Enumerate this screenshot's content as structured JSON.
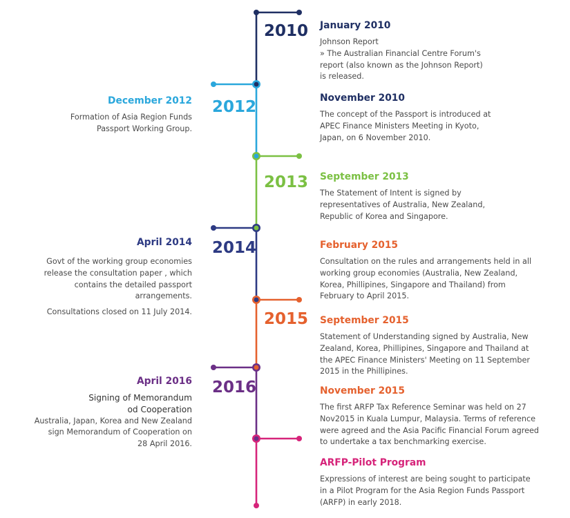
{
  "colors": {
    "y2010": "#1f2f63",
    "y2012": "#2aa7dc",
    "y2013": "#7bc043",
    "y2014": "#2d3a83",
    "y2015": "#e5612e",
    "y2016": "#6b2f86",
    "yPilot": "#d6247a",
    "text": "#4a4a4a"
  },
  "years": [
    "2010",
    "2012",
    "2013",
    "2014",
    "2015",
    "2016"
  ],
  "right_events": [
    {
      "title": "January 2010",
      "subtitle": "Johnson Report",
      "bullet": "» The Australian Financial Centre Forum's\n   report (also known as the Johnson Report)\n   is released."
    },
    {
      "title": "November 2010",
      "body": "The concept of the Passport is introduced at\nAPEC Finance Ministers Meeting in Kyoto,\nJapan, on 6 November 2010."
    },
    {
      "title": "September 2013",
      "body": "The Statement of Intent is signed by\nrepresentatives of Australia, New Zealand,\nRepublic of Korea and Singapore."
    },
    {
      "title": "February 2015",
      "body": "Consultation on the rules and arrangements held in all\nworking group economies (Australia, New Zealand,\nKorea, Phillipines, Singapore and Thailand) from\nFebruary to April 2015."
    },
    {
      "title": "September 2015",
      "body": "Statement of Understanding signed by Australia, New\nZealand, Korea, Phillipines, Singapore and Thailand at\nthe APEC Finance Ministers' Meeting on 11 September\n2015 in the Phillipines."
    },
    {
      "title": "November 2015",
      "body": "The first ARFP Tax Reference Seminar was held on 27\nNov2015 in Kuala Lumpur, Malaysia. Terms of reference\nwere agreed and the Asia Pacific Financial Forum agreed\nto undertake a tax benchmarking exercise."
    },
    {
      "title": "ARFP-Pilot Program",
      "body": "Expressions of interest are being sought to participate\nin a Pilot Program for the Asia Region Funds Passport\n(ARFP) in early 2018."
    }
  ],
  "left_events": [
    {
      "title": "December 2012",
      "body": "Formation of Asia Region Funds\nPassport Working Group."
    },
    {
      "title": "April 2014",
      "body": "Govt of the working group economies\nrelease the consultation paper , which\ncontains the detailed passport\narrangements.",
      "note": "Consultations closed on 11 July 2014."
    },
    {
      "title": "April 2016",
      "subtitle": "Signing of Memorandum\nod Cooperation",
      "body": "Australia, Japan, Korea and New Zealand\nsign Memorandum of Cooperation on\n28 April 2016."
    }
  ]
}
